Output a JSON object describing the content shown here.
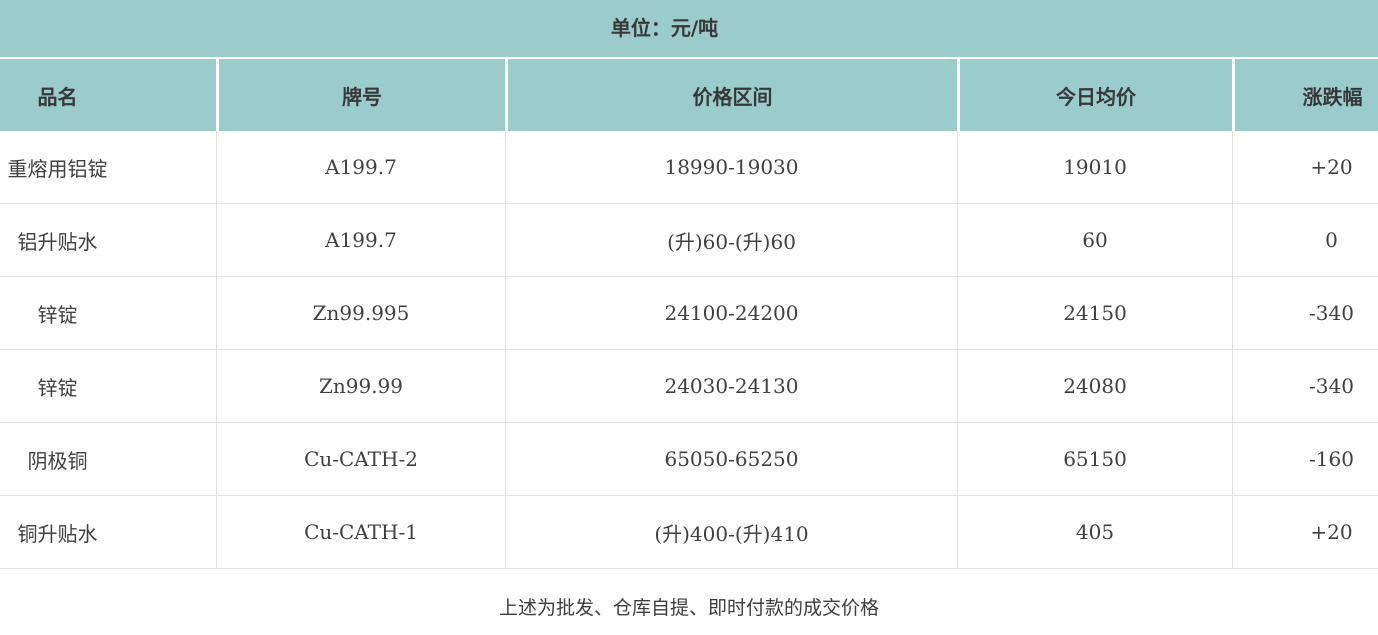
{
  "unit_bar": {
    "label": "单位：元/吨"
  },
  "table": {
    "columns": {
      "name": "品名",
      "brand": "牌号",
      "range": "价格区间",
      "avg": "今日均价",
      "change": "涨跌幅"
    },
    "rows": [
      {
        "name": "重熔用铝锭",
        "brand": "A199.7",
        "range": "18990-19030",
        "avg": "19010",
        "change": "+20"
      },
      {
        "name": "铝升贴水",
        "brand": "A199.7",
        "range": "(升)60-(升)60",
        "avg": "60",
        "change": "0"
      },
      {
        "name": "锌锭",
        "brand": "Zn99.995",
        "range": "24100-24200",
        "avg": "24150",
        "change": "-340"
      },
      {
        "name": "锌锭",
        "brand": "Zn99.99",
        "range": "24030-24130",
        "avg": "24080",
        "change": "-340"
      },
      {
        "name": "阴极铜",
        "brand": "Cu-CATH-2",
        "range": "65050-65250",
        "avg": "65150",
        "change": "-160"
      },
      {
        "name": "铜升贴水",
        "brand": "Cu-CATH-1",
        "range": "(升)400-(升)410",
        "avg": "405",
        "change": "+20"
      }
    ]
  },
  "footer": {
    "note": "上述为批发、仓库自提、即时付款的成交价格"
  },
  "colors": {
    "header_teal": "#9acccb",
    "row_border": "#e2e2e2",
    "text": "#3d3d3d"
  }
}
